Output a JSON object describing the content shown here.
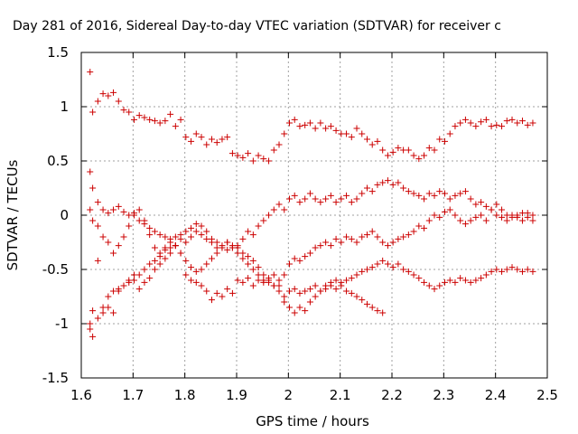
{
  "chart_data": {
    "type": "scatter",
    "title": "Day 281 of 2016, Sidereal Day-to-day VTEC variation (SDTVAR) for receiver c",
    "xlabel": "GPS time / hours",
    "ylabel": "SDTVAR / TECUs",
    "xlim": [
      1.6,
      2.5
    ],
    "ylim": [
      -1.5,
      1.5
    ],
    "xticks": [
      "1.6",
      "1.7",
      "1.8",
      "1.9",
      "2",
      "2.1",
      "2.2",
      "2.3",
      "2.4",
      "2.5"
    ],
    "yticks": [
      "1.5",
      "1",
      "0.5",
      "0",
      "-0.5",
      "-1",
      "-1.5"
    ],
    "grid": true,
    "legend": "none",
    "marker": "+",
    "color": "#cc0000",
    "series": [
      {
        "x": [
          1.617,
          1.622,
          1.632,
          1.642,
          1.652,
          1.662,
          1.672,
          1.682,
          1.692,
          1.702,
          1.712,
          1.722,
          1.732,
          1.742,
          1.752,
          1.762,
          1.772,
          1.782,
          1.792,
          1.802,
          1.812,
          1.822,
          1.832,
          1.842,
          1.852,
          1.862,
          1.872,
          1.882,
          1.892,
          1.902,
          1.912,
          1.922,
          1.932,
          1.942,
          1.952,
          1.962,
          1.972,
          1.982,
          1.992,
          2.002,
          2.012,
          2.022,
          2.032,
          2.042,
          2.052,
          2.062,
          2.072,
          2.082,
          2.092,
          2.102,
          2.112,
          2.122,
          2.132,
          2.142,
          2.152,
          2.162,
          2.172,
          2.182,
          2.192,
          2.202,
          2.212,
          2.222,
          2.232,
          2.242,
          2.252,
          2.262,
          2.272,
          2.282,
          2.292,
          2.302,
          2.312,
          2.322,
          2.332,
          2.342,
          2.352,
          2.362,
          2.372,
          2.382,
          2.392,
          2.402,
          2.412,
          2.422,
          2.432,
          2.442,
          2.452,
          2.462,
          2.472
        ],
        "y": [
          1.32,
          0.95,
          1.05,
          1.12,
          1.1,
          1.13,
          1.05,
          0.97,
          0.95,
          0.88,
          0.92,
          0.9,
          0.88,
          0.87,
          0.85,
          0.87,
          0.93,
          0.82,
          0.88,
          0.72,
          0.68,
          0.75,
          0.72,
          0.65,
          0.7,
          0.67,
          0.7,
          0.72,
          0.57,
          0.55,
          0.53,
          0.57,
          0.5,
          0.55,
          0.52,
          0.5,
          0.6,
          0.65,
          0.75,
          0.85,
          0.88,
          0.82,
          0.83,
          0.85,
          0.8,
          0.85,
          0.8,
          0.82,
          0.78,
          0.75,
          0.75,
          0.72,
          0.8,
          0.75,
          0.7,
          0.65,
          0.68,
          0.6,
          0.55,
          0.58,
          0.62,
          0.6,
          0.6,
          0.55,
          0.52,
          0.55,
          0.62,
          0.6,
          0.7,
          0.68,
          0.75,
          0.82,
          0.85,
          0.88,
          0.85,
          0.82,
          0.86,
          0.88,
          0.82,
          0.83,
          0.82,
          0.87,
          0.88,
          0.85,
          0.87,
          0.83,
          0.85
        ]
      },
      {
        "x": [
          1.617,
          1.622,
          1.632,
          1.642,
          1.652,
          1.662,
          1.672,
          1.682,
          1.692,
          1.702,
          1.712,
          1.722,
          1.732,
          1.742,
          1.752,
          1.762,
          1.772,
          1.782,
          1.792,
          1.802,
          1.812,
          1.822,
          1.832,
          1.842,
          1.852,
          1.862,
          1.872,
          1.882,
          1.892,
          1.902,
          1.912,
          1.922,
          1.932,
          1.942,
          1.952,
          1.962,
          1.972,
          1.982,
          1.992,
          2.002,
          2.012,
          2.022,
          2.032,
          2.042,
          2.052,
          2.062,
          2.072,
          2.082,
          2.092,
          2.102,
          2.112,
          2.122,
          2.132,
          2.142,
          2.152,
          2.162,
          2.172,
          2.182,
          2.192,
          2.202,
          2.212,
          2.222,
          2.232,
          2.242,
          2.252,
          2.262,
          2.272,
          2.282,
          2.292,
          2.302,
          2.312,
          2.322,
          2.332,
          2.342,
          2.352,
          2.362,
          2.372,
          2.382,
          2.392,
          2.402,
          2.412,
          2.422,
          2.432,
          2.442,
          2.452,
          2.462,
          2.472
        ],
        "y": [
          0.4,
          0.25,
          0.12,
          0.05,
          0.02,
          0.05,
          0.08,
          0.03,
          0.0,
          0.02,
          -0.05,
          -0.08,
          -0.12,
          -0.15,
          -0.18,
          -0.2,
          -0.22,
          -0.2,
          -0.18,
          -0.15,
          -0.12,
          -0.08,
          -0.1,
          -0.15,
          -0.22,
          -0.25,
          -0.3,
          -0.32,
          -0.28,
          -0.3,
          -0.35,
          -0.38,
          -0.42,
          -0.48,
          -0.55,
          -0.6,
          -0.65,
          -0.6,
          -0.55,
          -0.45,
          -0.4,
          -0.42,
          -0.38,
          -0.35,
          -0.3,
          -0.28,
          -0.25,
          -0.28,
          -0.22,
          -0.25,
          -0.2,
          -0.22,
          -0.25,
          -0.2,
          -0.18,
          -0.15,
          -0.2,
          -0.25,
          -0.28,
          -0.25,
          -0.22,
          -0.2,
          -0.18,
          -0.15,
          -0.1,
          -0.12,
          -0.05,
          0.0,
          -0.02,
          0.03,
          0.05,
          0.0,
          -0.05,
          -0.08,
          -0.05,
          -0.02,
          0.0,
          -0.05,
          0.05,
          0.1,
          0.05,
          0.0,
          -0.02,
          0.0,
          0.02,
          -0.02,
          0.0
        ]
      },
      {
        "x": [
          1.617,
          1.622,
          1.632,
          1.642,
          1.652,
          1.662,
          1.672,
          1.682,
          1.692,
          1.702,
          1.712,
          1.722,
          1.732,
          1.742,
          1.752,
          1.762,
          1.772,
          1.782,
          1.792,
          1.802,
          1.812,
          1.822,
          1.832,
          1.842,
          1.852,
          1.862,
          1.872,
          1.882,
          1.892,
          1.902,
          1.912,
          1.922,
          1.932,
          1.942,
          1.952,
          1.962,
          1.972,
          1.982,
          1.992,
          2.002,
          2.012,
          2.022,
          2.032,
          2.042,
          2.052,
          2.062,
          2.072,
          2.082,
          2.092,
          2.102,
          2.112,
          2.122,
          2.132,
          2.142,
          2.152,
          2.162,
          2.172,
          2.182,
          2.192,
          2.202,
          2.212,
          2.222,
          2.232,
          2.242,
          2.252,
          2.262,
          2.272,
          2.282,
          2.292,
          2.302,
          2.312,
          2.322,
          2.332,
          2.342,
          2.352,
          2.362,
          2.372,
          2.382,
          2.392,
          2.402,
          2.412,
          2.422,
          2.432,
          2.442,
          2.452,
          2.462,
          2.472
        ],
        "y": [
          0.05,
          -0.05,
          -0.1,
          -0.2,
          -0.25,
          -0.35,
          -0.28,
          -0.2,
          -0.1,
          0.0,
          0.05,
          -0.05,
          -0.18,
          -0.3,
          -0.35,
          -0.32,
          -0.3,
          -0.28,
          -0.35,
          -0.42,
          -0.48,
          -0.52,
          -0.5,
          -0.45,
          -0.4,
          -0.35,
          -0.3,
          -0.25,
          -0.3,
          -0.28,
          -0.22,
          -0.15,
          -0.18,
          -0.1,
          -0.05,
          0.0,
          0.05,
          0.1,
          0.05,
          0.15,
          0.18,
          0.12,
          0.15,
          0.2,
          0.15,
          0.12,
          0.15,
          0.18,
          0.12,
          0.15,
          0.18,
          0.12,
          0.15,
          0.2,
          0.25,
          0.22,
          0.28,
          0.3,
          0.32,
          0.28,
          0.3,
          0.25,
          0.22,
          0.2,
          0.18,
          0.15,
          0.2,
          0.18,
          0.22,
          0.2,
          0.15,
          0.18,
          0.2,
          0.22,
          0.15,
          0.1,
          0.12,
          0.08,
          0.05,
          0.0,
          -0.02,
          -0.05,
          0.0,
          -0.02,
          -0.05,
          0.02,
          -0.05
        ]
      },
      {
        "x": [
          1.617,
          1.622,
          1.632,
          1.642,
          1.652,
          1.662,
          1.672,
          1.682,
          1.692,
          1.702,
          1.712,
          1.722,
          1.732,
          1.742,
          1.752,
          1.762,
          1.772,
          1.782,
          1.792,
          1.802,
          1.812,
          1.822,
          1.832,
          1.842,
          1.852,
          1.862,
          1.872,
          1.882,
          1.892,
          1.902,
          1.912,
          1.922,
          1.932,
          1.942,
          1.952,
          1.962,
          1.972,
          1.982,
          1.992,
          2.002,
          2.012,
          2.022,
          2.032,
          2.042,
          2.052,
          2.062,
          2.072,
          2.082,
          2.092,
          2.102,
          2.112,
          2.122,
          2.132,
          2.142,
          2.152,
          2.162,
          2.172,
          2.182,
          2.192,
          2.202,
          2.212,
          2.222,
          2.232,
          2.242,
          2.252,
          2.262,
          2.272,
          2.282,
          2.292,
          2.302,
          2.312,
          2.322,
          2.332,
          2.342,
          2.352,
          2.362,
          2.372,
          2.382,
          2.392,
          2.402,
          2.412,
          2.422,
          2.432,
          2.442,
          2.452,
          2.462,
          2.472
        ],
        "y": [
          -1.05,
          -0.88,
          -0.95,
          -0.85,
          -0.75,
          -0.7,
          -0.68,
          -0.65,
          -0.62,
          -0.6,
          -0.55,
          -0.5,
          -0.45,
          -0.42,
          -0.38,
          -0.3,
          -0.25,
          -0.28,
          -0.22,
          -0.25,
          -0.2,
          -0.15,
          -0.18,
          -0.22,
          -0.25,
          -0.3,
          -0.28,
          -0.25,
          -0.3,
          -0.35,
          -0.4,
          -0.45,
          -0.5,
          -0.55,
          -0.6,
          -0.62,
          -0.65,
          -0.7,
          -0.75,
          -0.7,
          -0.68,
          -0.72,
          -0.7,
          -0.68,
          -0.65,
          -0.7,
          -0.68,
          -0.65,
          -0.68,
          -0.62,
          -0.6,
          -0.58,
          -0.55,
          -0.52,
          -0.5,
          -0.48,
          -0.45,
          -0.42,
          -0.45,
          -0.48,
          -0.45,
          -0.5,
          -0.52,
          -0.55,
          -0.58,
          -0.62,
          -0.65,
          -0.68,
          -0.65,
          -0.62,
          -0.6,
          -0.62,
          -0.58,
          -0.6,
          -0.62,
          -0.6,
          -0.58,
          -0.55,
          -0.52,
          -0.5,
          -0.52,
          -0.5,
          -0.48,
          -0.5,
          -0.52,
          -0.5,
          -0.52
        ]
      },
      {
        "x": [
          1.617,
          1.622,
          1.632,
          1.642,
          1.652,
          1.662,
          1.672,
          1.682,
          1.692,
          1.702,
          1.712,
          1.722,
          1.732,
          1.742,
          1.752,
          1.762,
          1.772,
          1.782,
          1.792,
          1.802,
          1.812,
          1.822,
          1.832,
          1.842,
          1.852,
          1.862,
          1.872,
          1.882,
          1.892,
          1.902,
          1.912,
          1.922,
          1.932,
          1.942,
          1.952,
          1.962,
          1.972,
          1.982,
          1.992,
          2.002,
          2.012,
          2.022,
          2.032,
          2.042,
          2.052,
          2.062,
          2.072,
          2.082,
          2.092,
          2.102,
          2.112,
          2.122,
          2.132,
          2.142,
          2.152,
          2.162,
          2.172,
          2.182
        ],
        "y": [
          -1.0,
          -1.12,
          -0.42,
          -0.9,
          -0.85,
          -0.9,
          -0.7,
          -0.65,
          -0.6,
          -0.55,
          -0.68,
          -0.62,
          -0.58,
          -0.5,
          -0.45,
          -0.4,
          -0.35,
          -0.28,
          -0.35,
          -0.55,
          -0.6,
          -0.62,
          -0.65,
          -0.7,
          -0.78,
          -0.72,
          -0.75,
          -0.68,
          -0.72,
          -0.6,
          -0.62,
          -0.58,
          -0.65,
          -0.6,
          -0.62,
          -0.58,
          -0.55,
          -0.65,
          -0.8,
          -0.85,
          -0.9,
          -0.85,
          -0.88,
          -0.8,
          -0.75,
          -0.7,
          -0.65,
          -0.62,
          -0.6,
          -0.65,
          -0.7,
          -0.72,
          -0.75,
          -0.78,
          -0.82,
          -0.85,
          -0.88,
          -0.9
        ]
      }
    ]
  }
}
